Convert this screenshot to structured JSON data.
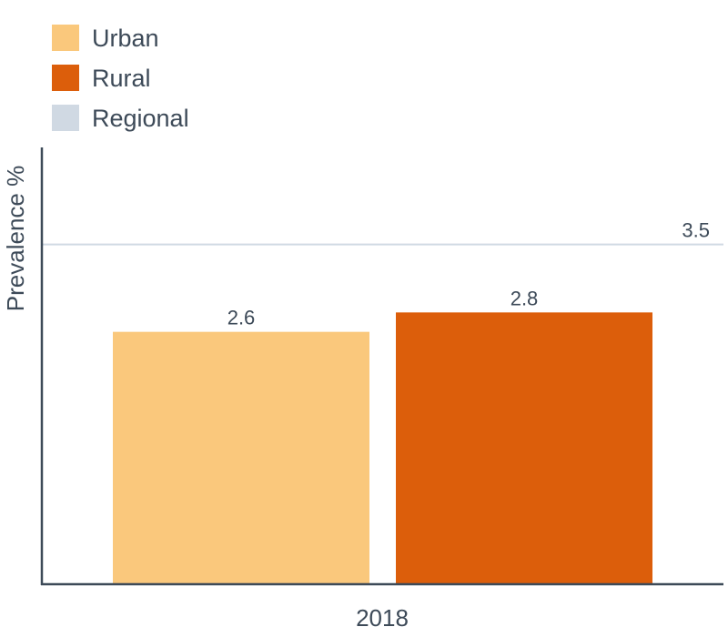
{
  "chart_data": {
    "type": "bar",
    "categories": [
      "2018"
    ],
    "series": [
      {
        "name": "Urban",
        "values": [
          2.6
        ],
        "color": "#fac87c"
      },
      {
        "name": "Rural",
        "values": [
          2.8
        ],
        "color": "#dc5e0b"
      }
    ],
    "reference_line": {
      "name": "Regional",
      "value": 3.5,
      "label": "3.5",
      "color": "#d0d9e3"
    },
    "xlabel": "",
    "ylabel": "Prevalence %",
    "ylim": [
      0,
      4.5
    ],
    "grid": false,
    "legend_position": "top-left"
  }
}
